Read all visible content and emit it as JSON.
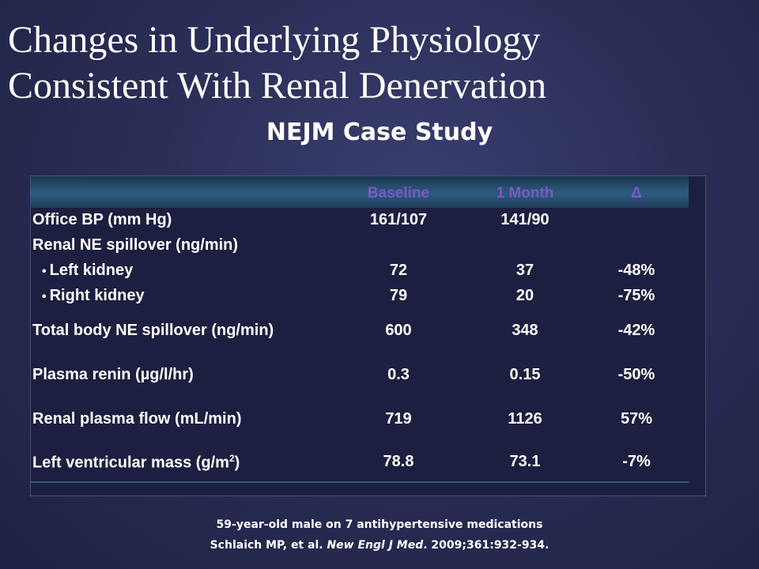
{
  "slide": {
    "title_line1": "Changes in Underlying Physiology",
    "title_line2": "Consistent With Renal Denervation",
    "subtitle": "NEJM Case Study"
  },
  "table": {
    "headers": [
      "Baseline",
      "1 Month",
      "Δ"
    ],
    "rows": [
      {
        "label": "Office BP (mm Hg)",
        "baseline": "161/107",
        "month1": "141/90",
        "delta": ""
      },
      {
        "label": "Renal NE spillover (ng/min)",
        "baseline": "",
        "month1": "",
        "delta": ""
      },
      {
        "label": "Left kidney",
        "baseline": "72",
        "month1": "37",
        "delta": "-48%"
      },
      {
        "label": "Right kidney",
        "baseline": "79",
        "month1": "20",
        "delta": "-75%"
      },
      {
        "label": "Total body NE spillover (ng/min)",
        "baseline": "600",
        "month1": "348",
        "delta": "-42%"
      },
      {
        "label": "Plasma renin (µg/l/hr)",
        "baseline": "0.3",
        "month1": "0.15",
        "delta": "-50%"
      },
      {
        "label": "Renal plasma flow (mL/min)",
        "baseline": "719",
        "month1": "1126",
        "delta": "57%"
      },
      {
        "label": "Left ventricular mass (g/m",
        "label_sup": "2",
        "label_close": ")",
        "baseline": "78.8",
        "month1": "73.1",
        "delta": "-7%"
      }
    ]
  },
  "footer": {
    "line1": "59-year-old male on 7 antihypertensive medications",
    "citation_prefix": "Schlaich MP, et al. ",
    "citation_journal": "New Engl J Med",
    "citation_suffix": ". 2009;361:932-934."
  },
  "colors": {
    "background": "#2b2e57",
    "header_text": "#7a58c8",
    "header_band": "#2d5d7e"
  }
}
